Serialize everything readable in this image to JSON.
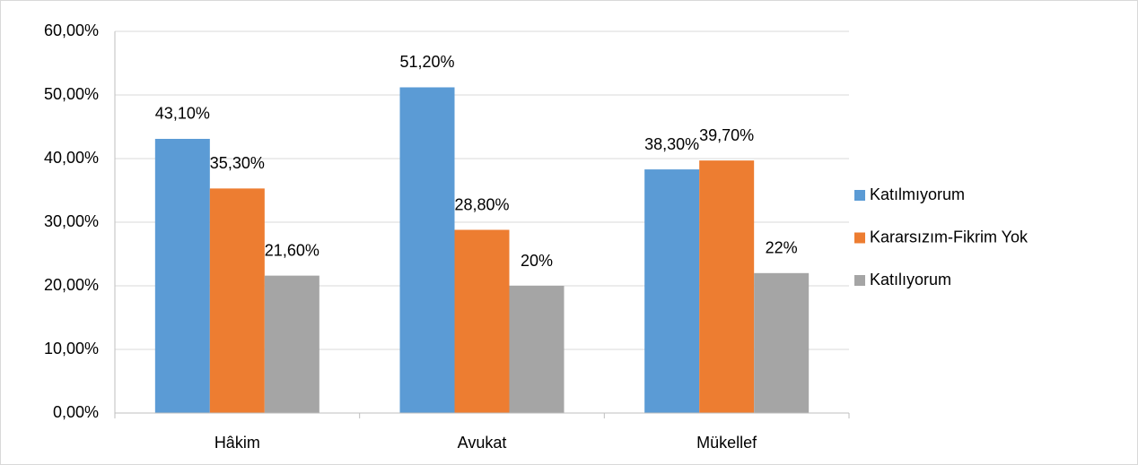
{
  "chart_data": {
    "type": "bar",
    "categories": [
      "Hâkim",
      "Avukat",
      "Mükellef"
    ],
    "series": [
      {
        "name": "Katılmıyorum",
        "color": "#5b9bd5",
        "values": [
          43.1,
          51.2,
          38.3
        ],
        "value_labels": [
          "43,10%",
          "51,20%",
          "38,30%"
        ]
      },
      {
        "name": "Kararsızım-Fikrim Yok",
        "color": "#ed7d31",
        "values": [
          35.3,
          28.8,
          39.7
        ],
        "value_labels": [
          "35,30%",
          "28,80%",
          "39,70%"
        ]
      },
      {
        "name": "Katılıyorum",
        "color": "#a5a5a5",
        "values": [
          21.6,
          20,
          22
        ],
        "value_labels": [
          "21,60%",
          "20%",
          "22%"
        ]
      }
    ],
    "ylim": [
      0,
      60
    ],
    "yticks": [
      {
        "value": 0,
        "label": "0,00%"
      },
      {
        "value": 10,
        "label": "10,00%"
      },
      {
        "value": 20,
        "label": "20,00%"
      },
      {
        "value": 30,
        "label": "30,00%"
      },
      {
        "value": 40,
        "label": "40,00%"
      },
      {
        "value": 50,
        "label": "50,00%"
      },
      {
        "value": 60,
        "label": "60,00%"
      }
    ],
    "grid": true,
    "legend": "right"
  }
}
